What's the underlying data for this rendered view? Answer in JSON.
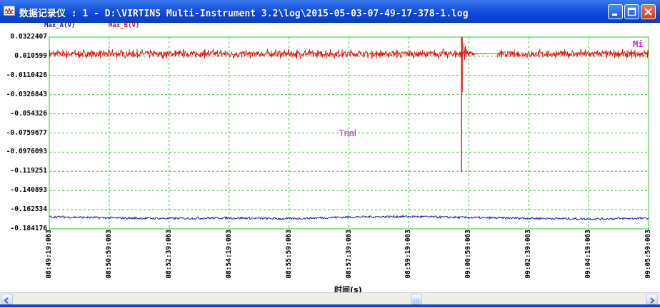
{
  "window": {
    "title": "数据记录仪 : 1 - D:\\VIRTINS Multi-Instrument 3.2\\log\\2015-05-03-07-49-17-378-1.log",
    "buttons": [
      "minimize",
      "maximize",
      "close"
    ]
  },
  "legend": {
    "series_a": "Max_A(V)",
    "series_b": "Max_B(V)"
  },
  "overlay": {
    "watermark": "Trial",
    "corner_label": "Mi"
  },
  "colors": {
    "series_a": "#1a1aa0",
    "series_b": "#e01010",
    "grid": "#2fc42f",
    "frame": "#2fc42f",
    "title_bar": "#0a46d8",
    "watermark": "#cc22cc"
  },
  "chart_data": {
    "type": "line",
    "xlabel": "时间(s)",
    "ylabel": "",
    "yticks": [
      "0.0322407",
      "0.010599",
      "-0.0110426",
      "-0.0326843",
      "-0.054326",
      "-0.0759677",
      "-0.0976093",
      "-0.119251",
      "-0.140893",
      "-0.162534",
      "-0.184176"
    ],
    "ylim": [
      -0.184176,
      0.0322407
    ],
    "xticks": [
      "08:49:19:063",
      "08:50:59:063",
      "08:52:39:063",
      "08:54:19:063",
      "08:55:59:063",
      "08:57:39:063",
      "08:59:19:063",
      "09:00:59:063",
      "09:02:39:063",
      "09:04:19:063",
      "09:05:59:063"
    ],
    "xlim": [
      "08:49:19:063",
      "09:05:59:063"
    ],
    "grid": true,
    "series": [
      {
        "name": "Max_B(V)",
        "color": "#e01010",
        "baseline": 0.0133,
        "noise_amplitude": 0.0035,
        "event": {
          "time": "09:00:47",
          "min": -0.1203,
          "max": 0.0322
        }
      },
      {
        "name": "Max_A(V)",
        "color": "#1a1aa0",
        "baseline": -0.1715,
        "noise_amplitude": 0.0012,
        "profile": [
          -0.1705,
          -0.1718,
          -0.1725,
          -0.1718,
          -0.1728,
          -0.1708,
          -0.1702,
          -0.1715,
          -0.1722,
          -0.173,
          -0.1722
        ]
      }
    ]
  },
  "scrollbar": {
    "position": 0.64
  }
}
